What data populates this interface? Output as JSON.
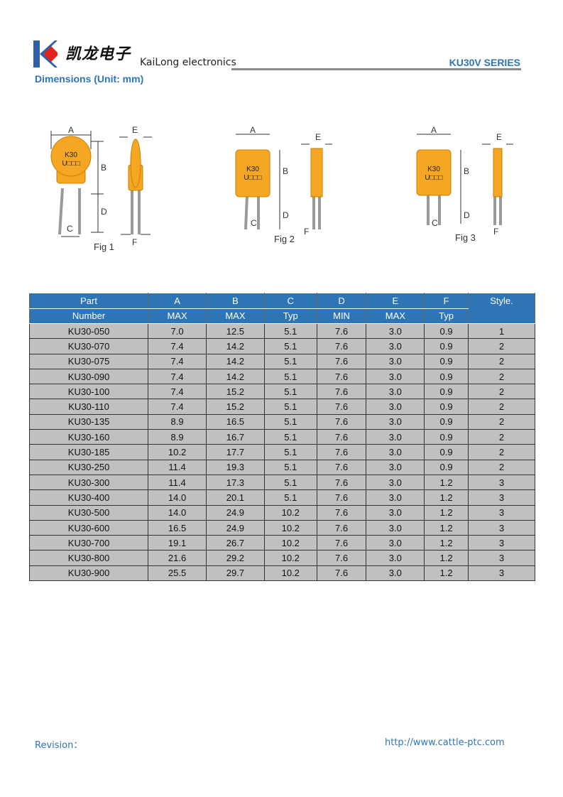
{
  "header": {
    "logo_cn": "凯龙电子",
    "logo_en": "KaiLong electronics",
    "series": "KU30V SERIES",
    "brand_colors": {
      "blue": "#2e5fa8",
      "red": "#e0231b"
    }
  },
  "section_title": "Dimensions (Unit: mm)",
  "figures": [
    {
      "label": "Fig 1",
      "marking": [
        "K30",
        "U□□□"
      ],
      "dims": [
        "A",
        "B",
        "C",
        "D",
        "E",
        "F"
      ]
    },
    {
      "label": "Fig 2",
      "marking": [
        "K30",
        "U□□□"
      ],
      "dims": [
        "A",
        "B",
        "C",
        "D",
        "E",
        "F"
      ]
    },
    {
      "label": "Fig 3",
      "marking": [
        "K30",
        "U□□□"
      ],
      "dims": [
        "A",
        "B",
        "C",
        "D",
        "E",
        "F"
      ]
    }
  ],
  "table": {
    "header_row1": [
      "Part",
      "A",
      "B",
      "C",
      "D",
      "E",
      "F",
      "Style."
    ],
    "header_row2": [
      "Number",
      "MAX",
      "MAX",
      "Typ",
      "MIN",
      "MAX",
      "Typ"
    ],
    "rows": [
      [
        "KU30-050",
        "7.0",
        "12.5",
        "5.1",
        "7.6",
        "3.0",
        "0.9",
        "1"
      ],
      [
        "KU30-070",
        "7.4",
        "14.2",
        "5.1",
        "7.6",
        "3.0",
        "0.9",
        "2"
      ],
      [
        "KU30-075",
        "7.4",
        "14.2",
        "5.1",
        "7.6",
        "3.0",
        "0.9",
        "2"
      ],
      [
        "KU30-090",
        "7.4",
        "14.2",
        "5.1",
        "7.6",
        "3.0",
        "0.9",
        "2"
      ],
      [
        "KU30-100",
        "7.4",
        "15.2",
        "5.1",
        "7.6",
        "3.0",
        "0.9",
        "2"
      ],
      [
        "KU30-110",
        "7.4",
        "15.2",
        "5.1",
        "7.6",
        "3.0",
        "0.9",
        "2"
      ],
      [
        "KU30-135",
        "8.9",
        "16.5",
        "5.1",
        "7.6",
        "3.0",
        "0.9",
        "2"
      ],
      [
        "KU30-160",
        "8.9",
        "16.7",
        "5.1",
        "7.6",
        "3.0",
        "0.9",
        "2"
      ],
      [
        "KU30-185",
        "10.2",
        "17.7",
        "5.1",
        "7.6",
        "3.0",
        "0.9",
        "2"
      ],
      [
        "KU30-250",
        "11.4",
        "19.3",
        "5.1",
        "7.6",
        "3.0",
        "0.9",
        "2"
      ],
      [
        "KU30-300",
        "11.4",
        "17.3",
        "5.1",
        "7.6",
        "3.0",
        "1.2",
        "3"
      ],
      [
        "KU30-400",
        "14.0",
        "20.1",
        "5.1",
        "7.6",
        "3.0",
        "1.2",
        "3"
      ],
      [
        "KU30-500",
        "14.0",
        "24.9",
        "10.2",
        "7.6",
        "3.0",
        "1.2",
        "3"
      ],
      [
        "KU30-600",
        "16.5",
        "24.9",
        "10.2",
        "7.6",
        "3.0",
        "1.2",
        "3"
      ],
      [
        "KU30-700",
        "19.1",
        "26.7",
        "10.2",
        "7.6",
        "3.0",
        "1.2",
        "3"
      ],
      [
        "KU30-800",
        "21.6",
        "29.2",
        "10.2",
        "7.6",
        "3.0",
        "1.2",
        "3"
      ],
      [
        "KU30-900",
        "25.5",
        "29.7",
        "10.2",
        "7.6",
        "3.0",
        "1.2",
        "3"
      ]
    ]
  },
  "footer": {
    "revision": "Revision：",
    "url": "http://www.cattle-ptc.com"
  }
}
